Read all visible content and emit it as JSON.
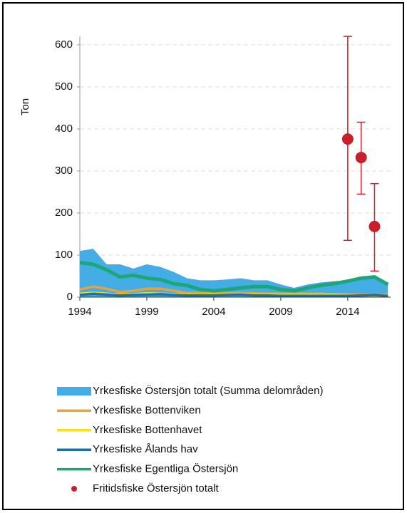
{
  "chart_data": {
    "type": "combo",
    "ylabel": "Ton",
    "x": [
      1994,
      1995,
      1996,
      1997,
      1998,
      1999,
      2000,
      2001,
      2002,
      2003,
      2004,
      2005,
      2006,
      2007,
      2008,
      2009,
      2010,
      2011,
      2012,
      2013,
      2014,
      2015,
      2016,
      2017
    ],
    "xlim": [
      1994,
      2017.2
    ],
    "xticks": [
      1994,
      1999,
      2004,
      2009,
      2014
    ],
    "ylim": [
      0,
      610
    ],
    "yticks": [
      0,
      100,
      200,
      300,
      400,
      500,
      600
    ],
    "grid": true,
    "series": [
      {
        "name": "Yrkesfiske Östersjön totalt (Summa delområden)",
        "type": "area",
        "color": "#45ade6",
        "values": [
          110,
          115,
          78,
          78,
          68,
          78,
          72,
          60,
          45,
          40,
          40,
          42,
          45,
          40,
          40,
          30,
          22,
          30,
          35,
          38,
          40,
          45,
          50,
          30
        ]
      },
      {
        "name": "Yrkesfiske Bottenviken",
        "type": "line",
        "color": "#e8a23a",
        "values": [
          18,
          25,
          20,
          12,
          15,
          20,
          20,
          15,
          10,
          10,
          10,
          10,
          10,
          9,
          8,
          8,
          8,
          8,
          8,
          7,
          7,
          6,
          6,
          5
        ]
      },
      {
        "name": "Yrkesfiske Bottenhavet",
        "type": "line",
        "color": "#f2e41e",
        "values": [
          8,
          10,
          8,
          6,
          7,
          9,
          8,
          7,
          6,
          5,
          6,
          6,
          7,
          6,
          6,
          5,
          5,
          5,
          5,
          5,
          4,
          4,
          4,
          4
        ]
      },
      {
        "name": "Yrkesfiske Ålands hav",
        "type": "line",
        "color": "#1b6fad",
        "values": [
          5,
          8,
          6,
          4,
          5,
          6,
          7,
          5,
          4,
          4,
          4,
          5,
          6,
          4,
          4,
          3,
          3,
          3,
          3,
          3,
          3,
          4,
          5,
          3
        ]
      },
      {
        "name": "Yrkesfiske Egentliga  Östersjön",
        "type": "line",
        "color": "#1ca67a",
        "values": [
          82,
          78,
          65,
          48,
          52,
          45,
          42,
          32,
          28,
          18,
          15,
          18,
          22,
          25,
          25,
          18,
          15,
          22,
          28,
          32,
          38,
          45,
          48,
          30
        ]
      },
      {
        "name": "Fritidsfiske Östersjön totalt",
        "type": "scatter",
        "color": "#c8202a",
        "x": [
          2014,
          2015,
          2016
        ],
        "values": [
          376,
          332,
          168
        ],
        "lower": [
          135,
          245,
          62
        ],
        "upper": [
          620,
          416,
          270
        ]
      }
    ]
  }
}
